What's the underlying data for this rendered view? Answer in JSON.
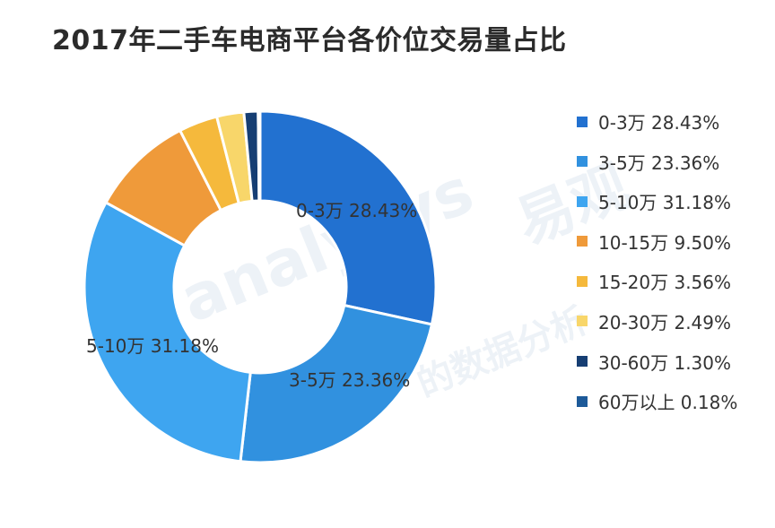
{
  "title": "2017年二手车电商平台各价位交易量占比",
  "watermark": {
    "brand": "易观",
    "latin": "analysys",
    "tagline": "的数据分析"
  },
  "chart_data": {
    "type": "pie",
    "variant": "donut",
    "title": "2017年二手车电商平台各价位交易量占比",
    "unit": "%",
    "legend_position": "right",
    "slices": [
      {
        "label": "0-3万",
        "value": 28.43,
        "text": "0-3万 28.43%",
        "color": "#2271d0",
        "on_chart": "0-3万 28.43%"
      },
      {
        "label": "3-5万",
        "value": 23.36,
        "text": "3-5万 23.36%",
        "color": "#3191df",
        "on_chart": "3-5万 23.36%"
      },
      {
        "label": "5-10万",
        "value": 31.18,
        "text": "5-10万 31.18%",
        "color": "#3ea5f0",
        "on_chart": "5-10万 31.18%"
      },
      {
        "label": "10-15万",
        "value": 9.5,
        "text": "10-15万 9.50%",
        "color": "#ef9a3a",
        "on_chart": ""
      },
      {
        "label": "15-20万",
        "value": 3.56,
        "text": "15-20万 3.56%",
        "color": "#f5b93c",
        "on_chart": ""
      },
      {
        "label": "20-30万",
        "value": 2.49,
        "text": "20-30万 2.49%",
        "color": "#f8d66a",
        "on_chart": ""
      },
      {
        "label": "30-60万",
        "value": 1.3,
        "text": "30-60万 1.30%",
        "color": "#163e73",
        "on_chart": ""
      },
      {
        "label": "60万以上",
        "value": 0.18,
        "text": "60万以上 0.18%",
        "color": "#1d5a99",
        "on_chart": ""
      }
    ]
  }
}
